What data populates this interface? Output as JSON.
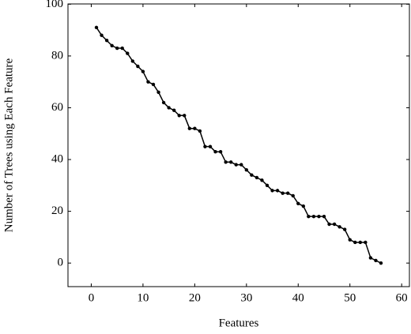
{
  "chart_data": {
    "type": "line",
    "x_label": "Features",
    "y_label": "Number of Trees using Each Feature",
    "x": [
      1,
      2,
      3,
      4,
      5,
      6,
      7,
      8,
      9,
      10,
      11,
      12,
      13,
      14,
      15,
      16,
      17,
      18,
      19,
      20,
      21,
      22,
      23,
      24,
      25,
      26,
      27,
      28,
      29,
      30,
      31,
      32,
      33,
      34,
      35,
      36,
      37,
      38,
      39,
      40,
      41,
      42,
      43,
      44,
      45,
      46,
      47,
      48,
      49,
      50,
      51,
      52,
      53,
      54,
      55,
      56
    ],
    "series": [
      {
        "color": "#000000",
        "values": [
          91,
          88,
          86,
          84,
          83,
          83,
          81,
          78,
          76,
          74,
          70,
          69,
          66,
          62,
          60,
          59,
          57,
          57,
          52,
          52,
          51,
          45,
          45,
          43,
          43,
          39,
          39,
          38,
          38,
          36,
          34,
          33,
          32,
          30,
          28,
          28,
          27,
          27,
          26,
          23,
          22,
          18,
          18,
          18,
          18,
          15,
          15,
          14,
          13,
          9,
          8,
          8,
          8,
          2,
          1,
          0
        ]
      }
    ],
    "xlim": [
      -4.5,
      61.5
    ],
    "xticks": [
      0,
      10,
      20,
      30,
      40,
      50,
      60
    ],
    "ylim": [
      -9.1,
      100.1
    ],
    "yticks": [
      0,
      20,
      40,
      60,
      80,
      100
    ]
  }
}
